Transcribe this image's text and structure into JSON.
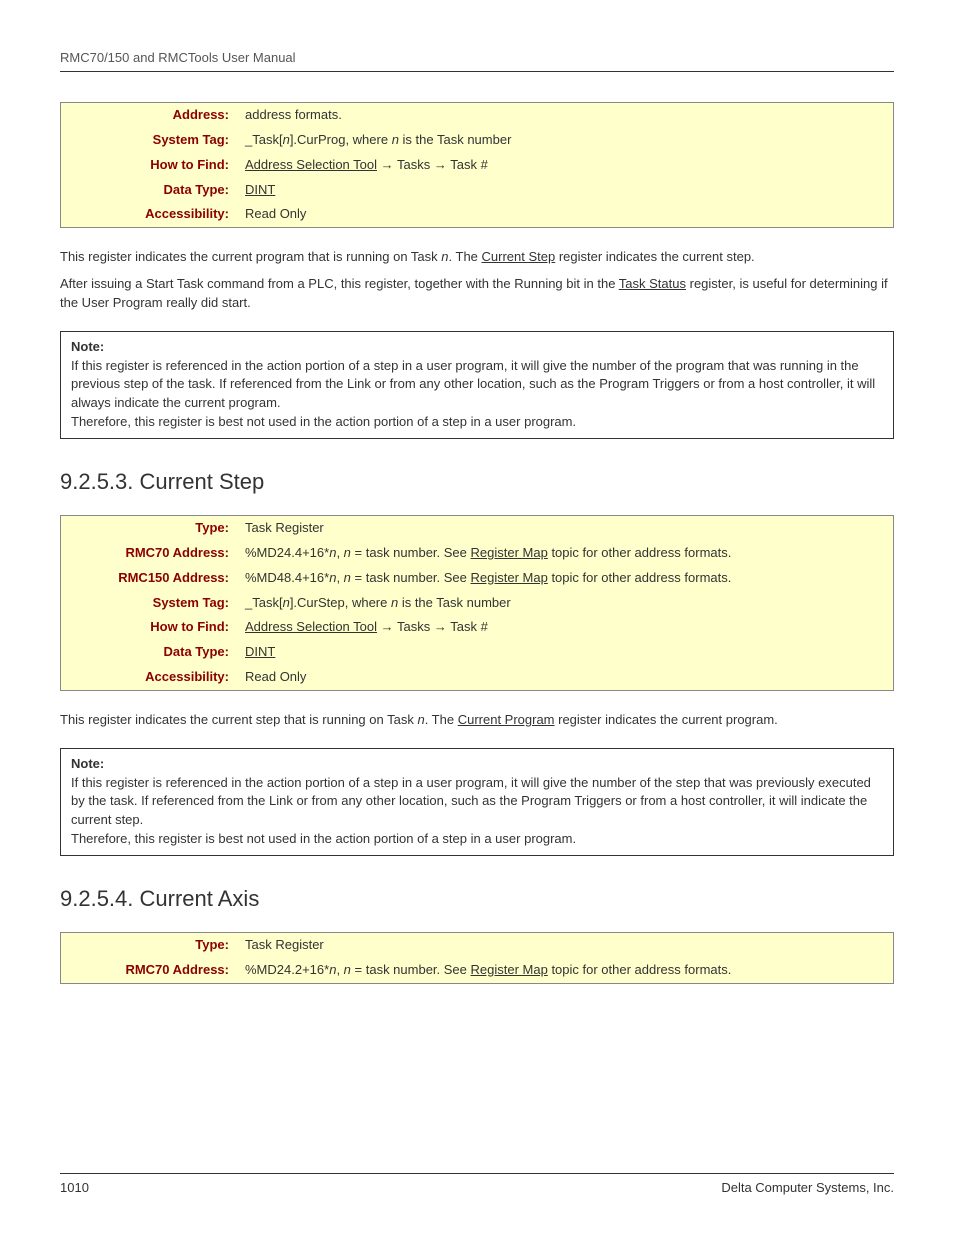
{
  "header": "RMC70/150 and RMCTools User Manual",
  "table1": {
    "rows": [
      {
        "label": "Address:",
        "html": "address formats."
      },
      {
        "label": "System Tag:",
        "html": "_Task[<em>n</em>].CurProg, where <em>n</em> is the Task number"
      },
      {
        "label": "How to Find:",
        "html": "<span class=\"link\">Address Selection Tool</span> → Tasks → Task #"
      },
      {
        "label": "Data Type:",
        "html": "<span class=\"link\">DINT</span>"
      },
      {
        "label": "Accessibility:",
        "html": "Read Only"
      }
    ]
  },
  "para1": "This register indicates the current program that is running on Task <em>n</em>. The <span class=\"link\">Current Step</span> register indicates the current step.",
  "para2": "After issuing a Start Task command from a PLC, this register, together with the Running bit in the <span class=\"link\">Task Status</span> register, is useful for determining if the User Program really did start.",
  "note1": {
    "title": "Note:",
    "body": "If this register is referenced in the action portion of a step in a user program, it will give the number of the program that was running in the previous step of the task. If referenced from the Link or from any other location, such as the Program Triggers or from a host controller, it will always indicate the current program.<br>Therefore, this register is best not used in the action portion of a step in a user program."
  },
  "section2": "9.2.5.3. Current Step",
  "table2": {
    "rows": [
      {
        "label": "Type:",
        "html": "Task Register"
      },
      {
        "label": "RMC70 Address:",
        "html": "%MD24.4+16*<em>n</em>, <em>n</em> = task number. See <span class=\"link\">Register Map</span> topic for other address formats."
      },
      {
        "label": "RMC150 Address:",
        "html": "%MD48.4+16*<em>n</em>, <em>n</em> = task number. See <span class=\"link\">Register Map</span> topic for other address formats."
      },
      {
        "label": "System Tag:",
        "html": "_Task[<em>n</em>].CurStep, where <em>n</em> is the Task number"
      },
      {
        "label": "How to Find:",
        "html": "<span class=\"link\">Address Selection Tool</span> → Tasks → Task #"
      },
      {
        "label": "Data Type:",
        "html": "<span class=\"link\">DINT</span>"
      },
      {
        "label": "Accessibility:",
        "html": "Read Only"
      }
    ]
  },
  "para3": "This register indicates the current step that is running on Task <em>n</em>. The <span class=\"link\">Current Program</span> register indicates the current program.",
  "note2": {
    "title": "Note:",
    "body": "If this register is referenced in the action portion of a step in a user program, it will give the number of the step that was previously executed by the task. If referenced from the Link or from any other location, such as the Program Triggers or from a host controller, it will indicate the current step.<br>Therefore, this register is best not used in the action portion of a step in a user program."
  },
  "section3": "9.2.5.4. Current Axis",
  "table3": {
    "rows": [
      {
        "label": "Type:",
        "html": "Task Register"
      },
      {
        "label": "RMC70 Address:",
        "html": "%MD24.2+16*<em>n</em>, <em>n</em> = task number. See <span class=\"link\">Register Map</span> topic for other address formats."
      }
    ]
  },
  "footer": {
    "page": "1010",
    "company": "Delta Computer Systems, Inc."
  },
  "colors": {
    "table_bg": "#ffffcc",
    "label_color": "#8b0000",
    "text_color": "#333333",
    "border_color": "#888888"
  }
}
